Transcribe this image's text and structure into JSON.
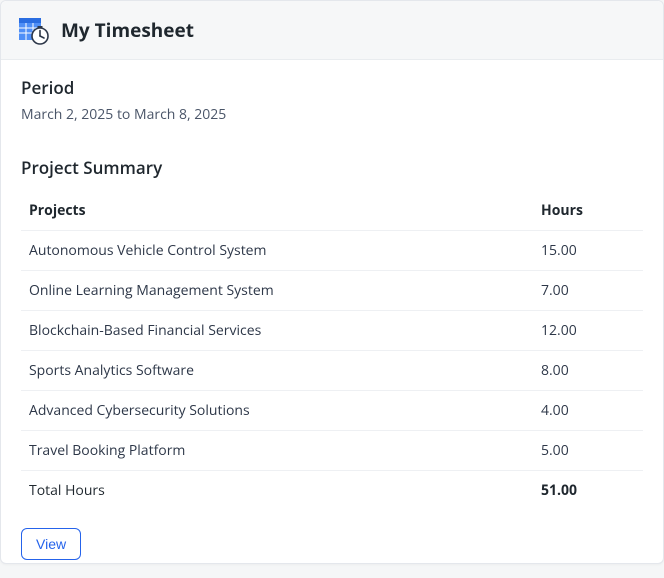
{
  "header": {
    "title": "My Timesheet",
    "icon_primary_color": "#4f8ff7",
    "icon_secondary_color": "#2a6de1",
    "icon_clock_face": "#ffffff",
    "icon_clock_stroke": "#2d3748"
  },
  "period": {
    "heading": "Period",
    "text": "March 2, 2025 to March 8, 2025"
  },
  "summary": {
    "heading": "Project Summary",
    "columns": {
      "project": "Projects",
      "hours": "Hours"
    },
    "rows": [
      {
        "project": "Autonomous Vehicle Control System",
        "hours": "15.00"
      },
      {
        "project": "Online Learning Management System",
        "hours": "7.00"
      },
      {
        "project": "Blockchain-Based Financial Services",
        "hours": "12.00"
      },
      {
        "project": "Sports Analytics Software",
        "hours": "8.00"
      },
      {
        "project": "Advanced Cybersecurity Solutions",
        "hours": "4.00"
      },
      {
        "project": "Travel Booking Platform",
        "hours": "5.00"
      }
    ],
    "total": {
      "label": "Total Hours",
      "hours": "51.00"
    }
  },
  "actions": {
    "view_label": "View"
  },
  "style": {
    "card_bg": "#ffffff",
    "card_border": "#e4e7ec",
    "header_bg": "#f6f7f8",
    "row_border": "#eef0f3",
    "text_primary": "#1f272e",
    "text_secondary": "#4a5568",
    "link_color": "#2563eb",
    "font_family": "Segoe UI / Open Sans",
    "title_fontsize_pt": 14,
    "body_fontsize_pt": 10.5
  }
}
